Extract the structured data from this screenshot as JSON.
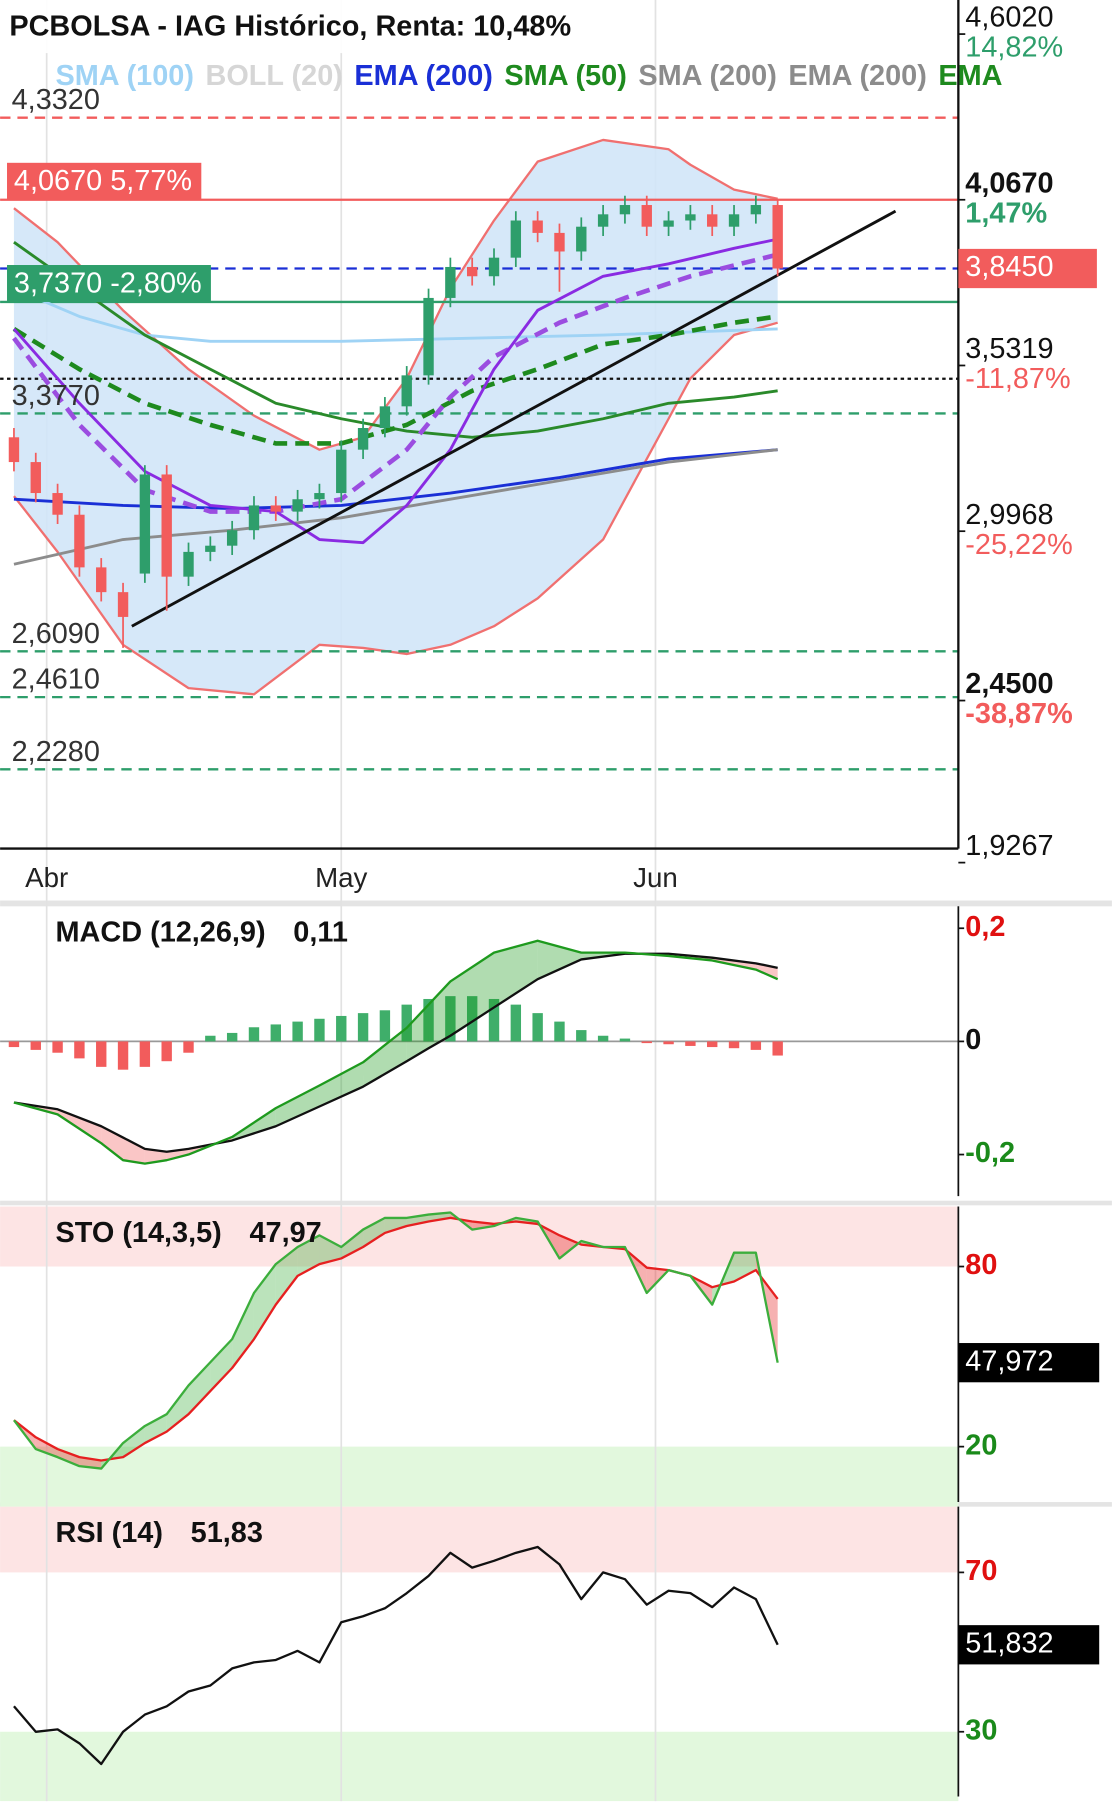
{
  "chart_data": [
    {
      "type": "candlestick",
      "title": "PCBOLSA - IAG Histórico, Renta: 10,48%",
      "legend": [
        {
          "label": "SMA (100)",
          "color": "#9fd3f5"
        },
        {
          "label": "BOLL (20)",
          "color": "#d6d6d6"
        },
        {
          "label": "EMA (200)",
          "color": "#1a2fd6"
        },
        {
          "label": "SMA (50)",
          "color": "#1e8a1e"
        },
        {
          "label": "SMA (200)",
          "color": "#8c8c8c"
        },
        {
          "label": "EMA (200)",
          "color": "#8c8c8c"
        },
        {
          "label": "EMA",
          "color": "#1e8a1e"
        }
      ],
      "xlim": [
        -0.635,
        43.28
      ],
      "xticks": [
        {
          "value": 1.5,
          "label": "Abr"
        },
        {
          "value": 15,
          "label": "May"
        },
        {
          "value": 29.4,
          "label": "Jun"
        }
      ],
      "ylim": [
        1.972,
        4.712
      ],
      "yticks": [
        {
          "value": 4.602,
          "label": "4,6020"
        },
        {
          "value": 4.067,
          "label": "4,0670",
          "weight": "bold"
        },
        {
          "value": 3.5319,
          "label": "3,5319"
        },
        {
          "value": 2.9968,
          "label": "2,9968"
        },
        {
          "value": 2.45,
          "label": "2,4500",
          "weight": "bold"
        },
        {
          "value": 1.9267,
          "label": "1,9267"
        }
      ],
      "ychanges": [
        {
          "value": 4.602,
          "label": "14,82%",
          "color": "#2e9e6b"
        },
        {
          "value": 4.067,
          "label": "1,47%",
          "color": "#2e9e6b",
          "weight": "bold"
        },
        {
          "value": 3.5319,
          "label": "-11,87%",
          "color": "#f25c5c"
        },
        {
          "value": 2.9968,
          "label": "-25,22%",
          "color": "#f25c5c"
        },
        {
          "value": 2.45,
          "label": "-38,87%",
          "color": "#f25c5c",
          "weight": "bold"
        }
      ],
      "last_price": {
        "value": 3.845,
        "label": "3,8450",
        "color": "#f25c5c"
      },
      "levels": [
        {
          "value": 4.332,
          "label": "4,3320",
          "color": "#f25c5c",
          "style": "dashed"
        },
        {
          "value": 4.067,
          "label": "4,0670 5,77%",
          "color": "#f25c5c",
          "style": "solid",
          "box": true
        },
        {
          "value": 3.845,
          "color": "#1a2fd6",
          "style": "dashed"
        },
        {
          "value": 3.737,
          "label": "3,7370 -2,80%",
          "color": "#2e9e6b",
          "style": "solid",
          "box": true
        },
        {
          "value": 3.489,
          "color": "#111111",
          "style": "dotted"
        },
        {
          "value": 3.377,
          "label": "3,3770",
          "color": "#2e9e6b",
          "style": "dashed"
        },
        {
          "value": 2.609,
          "label": "2,6090",
          "color": "#2e9e6b",
          "style": "dashed"
        },
        {
          "value": 2.461,
          "label": "2,4610",
          "color": "#2e9e6b",
          "style": "dashed"
        },
        {
          "value": 2.228,
          "label": "2,2280",
          "color": "#2e9e6b",
          "style": "dashed"
        }
      ],
      "up_color": "#2e9e6b",
      "down_color": "#f25c5c",
      "open": [
        3.3,
        3.22,
        3.12,
        3.05,
        2.88,
        2.8,
        2.86,
        3.18,
        2.85,
        2.93,
        2.95,
        3.0,
        3.08,
        3.06,
        3.1,
        3.12,
        3.26,
        3.33,
        3.4,
        3.5,
        3.75,
        3.85,
        3.82,
        3.88,
        4.0,
        3.96,
        3.9,
        3.98,
        4.02,
        4.05,
        3.98,
        4.0,
        4.02,
        3.98,
        4.02,
        4.05
      ],
      "high": [
        3.33,
        3.25,
        3.15,
        3.08,
        2.91,
        2.83,
        3.21,
        3.21,
        2.96,
        2.98,
        3.03,
        3.11,
        3.11,
        3.13,
        3.15,
        3.29,
        3.36,
        3.43,
        3.53,
        3.78,
        3.88,
        3.88,
        3.91,
        4.03,
        4.03,
        3.99,
        4.01,
        4.05,
        4.08,
        4.08,
        4.03,
        4.05,
        4.05,
        4.05,
        4.08,
        4.07
      ],
      "low": [
        3.19,
        3.09,
        3.02,
        2.85,
        2.77,
        2.62,
        2.83,
        2.74,
        2.82,
        2.9,
        2.92,
        2.97,
        3.03,
        3.03,
        3.07,
        3.09,
        3.23,
        3.3,
        3.37,
        3.47,
        3.72,
        3.79,
        3.79,
        3.85,
        3.93,
        3.77,
        3.87,
        3.95,
        3.99,
        3.95,
        3.95,
        3.97,
        3.95,
        3.95,
        3.99,
        3.82
      ],
      "close": [
        3.22,
        3.12,
        3.05,
        2.88,
        2.8,
        2.72,
        3.18,
        2.85,
        2.93,
        2.95,
        3.0,
        3.08,
        3.06,
        3.1,
        3.12,
        3.26,
        3.33,
        3.4,
        3.5,
        3.75,
        3.85,
        3.82,
        3.88,
        4.0,
        3.96,
        3.9,
        3.98,
        4.02,
        4.05,
        3.98,
        4.0,
        4.02,
        3.98,
        4.02,
        4.05,
        3.845
      ],
      "bollinger": {
        "fill": "#d2e6f8",
        "color": "#f07070",
        "x": [
          0,
          2,
          5,
          8,
          11,
          14,
          16,
          18,
          20,
          22,
          24,
          27,
          29,
          30,
          31,
          33,
          35
        ],
        "upper": [
          4.04,
          3.93,
          3.71,
          3.52,
          3.37,
          3.26,
          3.3,
          3.49,
          3.78,
          4.0,
          4.19,
          4.26,
          4.24,
          4.23,
          4.18,
          4.1,
          4.07
        ],
        "lower": [
          3.11,
          2.93,
          2.63,
          2.49,
          2.47,
          2.63,
          2.62,
          2.6,
          2.63,
          2.69,
          2.78,
          2.97,
          3.23,
          3.36,
          3.49,
          3.63,
          3.67
        ]
      },
      "overlays": [
        {
          "color": "#9fd3f5",
          "style": "solid",
          "x": [
            0,
            3,
            6,
            9,
            15,
            21,
            27,
            35
          ],
          "values": [
            3.78,
            3.69,
            3.63,
            3.61,
            3.61,
            3.62,
            3.63,
            3.65
          ]
        },
        {
          "color": "#1a2fd6",
          "style": "solid",
          "x": [
            0,
            5,
            10,
            15,
            20,
            25,
            30,
            35
          ],
          "values": [
            3.1,
            3.08,
            3.07,
            3.08,
            3.12,
            3.17,
            3.23,
            3.26
          ]
        },
        {
          "color": "#8c8c8c",
          "style": "solid",
          "x": [
            0,
            5,
            10,
            15,
            20,
            25,
            30,
            35
          ],
          "values": [
            2.89,
            2.97,
            3.0,
            3.04,
            3.1,
            3.16,
            3.22,
            3.26
          ]
        },
        {
          "color": "#2a8a2a",
          "style": "solid",
          "x": [
            0,
            3,
            6,
            9,
            12,
            15,
            18,
            21,
            24,
            27,
            30,
            33,
            35
          ],
          "values": [
            3.93,
            3.78,
            3.63,
            3.52,
            3.41,
            3.36,
            3.32,
            3.3,
            3.32,
            3.36,
            3.41,
            3.43,
            3.45
          ]
        },
        {
          "color": "#1e8a1e",
          "style": "dashed",
          "x": [
            0,
            3,
            6,
            9,
            12,
            15,
            18,
            21,
            24,
            27,
            30,
            33,
            35
          ],
          "values": [
            3.65,
            3.52,
            3.41,
            3.34,
            3.28,
            3.28,
            3.34,
            3.45,
            3.52,
            3.6,
            3.63,
            3.67,
            3.69
          ]
        },
        {
          "color": "#9b4de0",
          "style": "dashed",
          "x": [
            0,
            3,
            6,
            9,
            12,
            15,
            18,
            20,
            22,
            25,
            28,
            31,
            35
          ],
          "values": [
            3.62,
            3.34,
            3.13,
            3.06,
            3.06,
            3.1,
            3.26,
            3.43,
            3.56,
            3.67,
            3.75,
            3.82,
            3.89
          ]
        },
        {
          "color": "#8a2be2",
          "style": "solid",
          "x": [
            0,
            3,
            6,
            9,
            12,
            14,
            16,
            18,
            20,
            22,
            24,
            27,
            30,
            33,
            35
          ],
          "values": [
            3.65,
            3.41,
            3.19,
            3.08,
            3.06,
            2.97,
            2.96,
            3.08,
            3.26,
            3.52,
            3.71,
            3.82,
            3.86,
            3.91,
            3.94
          ]
        },
        {
          "color": "#111111",
          "style": "solid",
          "x": [
            5.4,
            40.4
          ],
          "values": [
            2.69,
            4.03
          ]
        }
      ]
    },
    {
      "type": "macd",
      "label": "MACD (12,26,9)",
      "readout": {
        "value": 0.11,
        "label": "0,11"
      },
      "xlim": [
        -0.635,
        43.28
      ],
      "ylim": [
        -0.2816,
        0.2388
      ],
      "yticks": [
        {
          "value": 0.2,
          "label": "0,2"
        },
        0,
        {
          "value": -0.2,
          "label": "-0,2"
        }
      ],
      "ytick_colors": [
        "#e01010",
        "#111111",
        "#1a8a1a"
      ],
      "line_x": [
        0,
        2,
        4,
        5,
        6,
        7,
        8,
        10,
        12,
        14,
        16,
        18,
        19,
        20,
        22,
        24,
        26,
        28,
        30,
        32,
        34,
        35
      ],
      "macd": [
        -0.108,
        -0.129,
        -0.18,
        -0.21,
        -0.216,
        -0.21,
        -0.2,
        -0.169,
        -0.118,
        -0.078,
        -0.037,
        0.024,
        0.065,
        0.106,
        0.157,
        0.178,
        0.157,
        0.157,
        0.151,
        0.143,
        0.127,
        0.11
      ],
      "signal": [
        -0.108,
        -0.12,
        -0.15,
        -0.17,
        -0.19,
        -0.195,
        -0.19,
        -0.175,
        -0.15,
        -0.115,
        -0.08,
        -0.035,
        -0.012,
        0.01,
        0.06,
        0.11,
        0.145,
        0.155,
        0.155,
        0.148,
        0.138,
        0.13
      ],
      "histogram": [
        -0.01,
        -0.015,
        -0.02,
        -0.03,
        -0.045,
        -0.05,
        -0.045,
        -0.035,
        -0.02,
        0.01,
        0.015,
        0.025,
        0.03,
        0.035,
        0.04,
        0.045,
        0.05,
        0.055,
        0.065,
        0.075,
        0.08,
        0.08,
        0.075,
        0.065,
        0.05,
        0.035,
        0.02,
        0.01,
        0.005,
        -0.003,
        -0.005,
        -0.008,
        -0.01,
        -0.012,
        -0.015,
        -0.025
      ],
      "colors": {
        "macd": "#1e9a1e",
        "signal": "#111111",
        "up": "#3fae6a",
        "down": "#f25c5c"
      }
    },
    {
      "type": "stochastic",
      "label": "STO (14,3,5)",
      "readout": {
        "value": 47.97,
        "label": "47,97"
      },
      "last": {
        "value": 47.972,
        "label": "47,972"
      },
      "xlim": [
        -0.635,
        43.28
      ],
      "ylim": [
        0,
        100
      ],
      "yticks": [
        80,
        20
      ],
      "ytick_colors": [
        "#e01010",
        "#1a8a1a"
      ],
      "bands": [
        {
          "from": 80,
          "to": 100,
          "color": "#fde4e4"
        },
        {
          "from": 0,
          "to": 20,
          "color": "#e2f8dd"
        }
      ],
      "k": [
        28.8,
        19.2,
        16.5,
        13.5,
        12.7,
        21.2,
        26.9,
        30.8,
        40.4,
        48.1,
        55.8,
        71.2,
        80.8,
        86.5,
        90.4,
        86.5,
        92.3,
        96.2,
        96.2,
        97.3,
        98,
        92.3,
        93.5,
        96.2,
        95,
        82.7,
        88.5,
        86.5,
        86.5,
        71.2,
        78.8,
        76.9,
        67.3,
        84.6,
        84.6,
        47.97
      ],
      "d": [
        28.8,
        23.1,
        19.2,
        16.5,
        15.4,
        16.5,
        21.2,
        25,
        30.8,
        38.5,
        46.2,
        55.8,
        67.3,
        76.9,
        80.8,
        82.7,
        86.5,
        91.2,
        93.5,
        95,
        96.2,
        95,
        94.2,
        95,
        94.2,
        90.4,
        87.3,
        86.5,
        85.8,
        79.6,
        78.8,
        76.9,
        73.1,
        75,
        78.8,
        69.2
      ],
      "colors": {
        "k": "#3cae3c",
        "d": "#e62020"
      }
    },
    {
      "type": "rsi",
      "label": "RSI (14)",
      "readout": {
        "value": 51.83,
        "label": "51,83"
      },
      "last": {
        "value": 51.832,
        "label": "51,832"
      },
      "xlim": [
        -0.635,
        43.28
      ],
      "ylim": [
        12.6,
        86.5
      ],
      "yticks": [
        70,
        30
      ],
      "ytick_colors": [
        "#e01010",
        "#1a8a1a"
      ],
      "bands": [
        {
          "from": 70,
          "to": 86.5,
          "color": "#fde4e4"
        },
        {
          "from": 12.6,
          "to": 30,
          "color": "#e2f8dd"
        }
      ],
      "values": [
        36.4,
        30,
        30.6,
        27.1,
        21.9,
        30,
        34.3,
        36.4,
        40.1,
        41.6,
        45.9,
        47.4,
        48,
        50.3,
        47.4,
        57.5,
        59,
        61,
        64.8,
        69.1,
        74.9,
        71.2,
        72.9,
        74.9,
        76.4,
        72,
        63.3,
        70,
        68.3,
        61.9,
        65.4,
        64.8,
        61.3,
        66.2,
        63.3,
        51.83
      ],
      "color": "#111111"
    }
  ]
}
